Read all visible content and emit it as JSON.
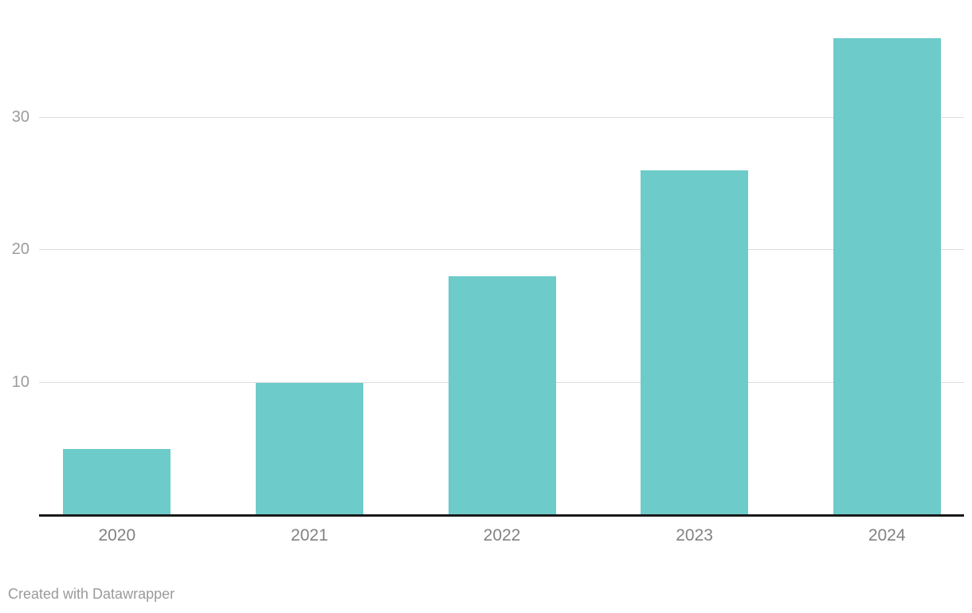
{
  "footer": {
    "attribution": "Created with Datawrapper"
  },
  "chart_data": {
    "type": "bar",
    "categories": [
      "2020",
      "2021",
      "2022",
      "2023",
      "2024"
    ],
    "values": [
      5,
      10,
      18,
      26,
      36
    ],
    "title": "",
    "xlabel": "",
    "ylabel": "",
    "ylim": [
      0,
      38.8
    ],
    "yticks": [
      10,
      20,
      30
    ],
    "grid": true,
    "legend": "none",
    "colors": {
      "bar": "#6dcbca",
      "gridline": "#dddddd",
      "axis_line": "#1a1a1a",
      "y_tick_label": "#9c9c9c",
      "x_tick_label": "#828282",
      "attribution": "#9a9a9a"
    }
  }
}
